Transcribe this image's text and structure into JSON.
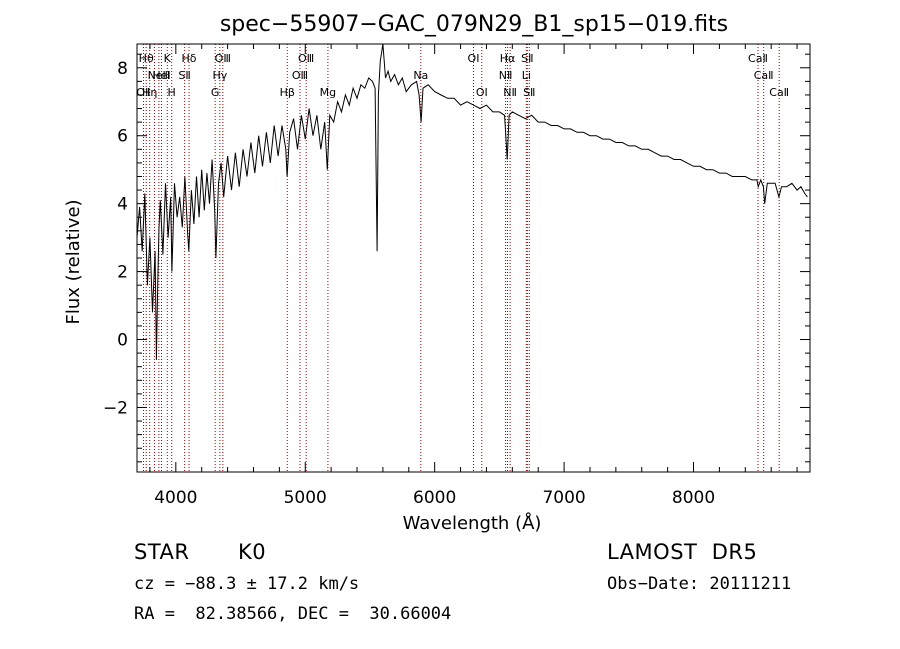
{
  "chart_data": {
    "type": "line",
    "title": "spec−55907−GAC_079N29_B1_sp15−019.fits",
    "xlabel": "Wavelength (Å)",
    "ylabel": "Flux (relative)",
    "xlim": [
      3700,
      8900
    ],
    "ylim": [
      -3.9,
      8.7
    ],
    "xticks": [
      4000,
      5000,
      6000,
      7000,
      8000
    ],
    "yticks": [
      -2,
      0,
      2,
      4,
      6,
      8
    ],
    "ytick_labels": [
      "−2",
      "0",
      "2",
      "4",
      "6",
      "8"
    ],
    "x_minor_step": 200,
    "y_minor_step": 0.4,
    "grid": false,
    "series": [
      {
        "color": "#000000",
        "points": [
          [
            3700,
            3.0
          ],
          [
            3720,
            3.9
          ],
          [
            3740,
            2.6
          ],
          [
            3760,
            4.3
          ],
          [
            3780,
            1.6
          ],
          [
            3800,
            3.0
          ],
          [
            3820,
            0.8
          ],
          [
            3840,
            2.6
          ],
          [
            3850,
            -0.6
          ],
          [
            3860,
            1.6
          ],
          [
            3870,
            3.3
          ],
          [
            3880,
            4.1
          ],
          [
            3900,
            2.5
          ],
          [
            3920,
            4.6
          ],
          [
            3940,
            3.0
          ],
          [
            3960,
            4.2
          ],
          [
            3970,
            2.0
          ],
          [
            3990,
            4.6
          ],
          [
            4010,
            3.6
          ],
          [
            4030,
            4.2
          ],
          [
            4050,
            3.3
          ],
          [
            4070,
            4.8
          ],
          [
            4090,
            3.2
          ],
          [
            4100,
            2.6
          ],
          [
            4120,
            4.4
          ],
          [
            4140,
            3.4
          ],
          [
            4160,
            4.8
          ],
          [
            4180,
            3.6
          ],
          [
            4200,
            5.0
          ],
          [
            4220,
            3.8
          ],
          [
            4240,
            4.9
          ],
          [
            4260,
            4.0
          ],
          [
            4280,
            5.3
          ],
          [
            4300,
            3.8
          ],
          [
            4310,
            2.4
          ],
          [
            4330,
            4.6
          ],
          [
            4350,
            5.2
          ],
          [
            4370,
            4.2
          ],
          [
            4400,
            5.4
          ],
          [
            4430,
            4.4
          ],
          [
            4460,
            5.5
          ],
          [
            4490,
            4.5
          ],
          [
            4520,
            5.6
          ],
          [
            4550,
            4.8
          ],
          [
            4580,
            5.8
          ],
          [
            4610,
            4.9
          ],
          [
            4640,
            6.0
          ],
          [
            4670,
            5.1
          ],
          [
            4700,
            6.1
          ],
          [
            4730,
            5.2
          ],
          [
            4760,
            6.3
          ],
          [
            4790,
            5.4
          ],
          [
            4820,
            6.3
          ],
          [
            4850,
            5.6
          ],
          [
            4860,
            4.8
          ],
          [
            4880,
            6.1
          ],
          [
            4910,
            6.5
          ],
          [
            4940,
            5.6
          ],
          [
            4970,
            6.6
          ],
          [
            5000,
            5.9
          ],
          [
            5030,
            6.8
          ],
          [
            5060,
            6.0
          ],
          [
            5090,
            6.6
          ],
          [
            5120,
            5.6
          ],
          [
            5150,
            6.4
          ],
          [
            5170,
            5.0
          ],
          [
            5190,
            6.6
          ],
          [
            5220,
            6.4
          ],
          [
            5250,
            7.0
          ],
          [
            5280,
            6.7
          ],
          [
            5310,
            7.2
          ],
          [
            5340,
            6.9
          ],
          [
            5370,
            7.4
          ],
          [
            5400,
            7.1
          ],
          [
            5430,
            7.5
          ],
          [
            5460,
            7.4
          ],
          [
            5490,
            7.7
          ],
          [
            5520,
            7.6
          ],
          [
            5540,
            7.4
          ],
          [
            5555,
            2.6
          ],
          [
            5565,
            7.2
          ],
          [
            5580,
            8.2
          ],
          [
            5600,
            8.7
          ],
          [
            5620,
            7.7
          ],
          [
            5640,
            7.9
          ],
          [
            5660,
            7.6
          ],
          [
            5690,
            7.8
          ],
          [
            5720,
            7.5
          ],
          [
            5750,
            7.7
          ],
          [
            5780,
            7.3
          ],
          [
            5820,
            7.5
          ],
          [
            5860,
            7.6
          ],
          [
            5880,
            7.2
          ],
          [
            5895,
            6.4
          ],
          [
            5910,
            7.4
          ],
          [
            5950,
            7.5
          ],
          [
            6000,
            7.3
          ],
          [
            6050,
            7.2
          ],
          [
            6100,
            7.1
          ],
          [
            6150,
            7.1
          ],
          [
            6200,
            6.9
          ],
          [
            6250,
            7.0
          ],
          [
            6300,
            6.9
          ],
          [
            6350,
            6.8
          ],
          [
            6400,
            6.9
          ],
          [
            6450,
            6.7
          ],
          [
            6500,
            6.7
          ],
          [
            6540,
            6.6
          ],
          [
            6560,
            5.3
          ],
          [
            6575,
            6.6
          ],
          [
            6600,
            6.7
          ],
          [
            6650,
            6.6
          ],
          [
            6700,
            6.5
          ],
          [
            6750,
            6.6
          ],
          [
            6800,
            6.4
          ],
          [
            6850,
            6.4
          ],
          [
            6900,
            6.3
          ],
          [
            6950,
            6.3
          ],
          [
            7000,
            6.2
          ],
          [
            7050,
            6.2
          ],
          [
            7100,
            6.1
          ],
          [
            7150,
            6.1
          ],
          [
            7200,
            6.0
          ],
          [
            7250,
            6.0
          ],
          [
            7300,
            5.9
          ],
          [
            7350,
            5.9
          ],
          [
            7400,
            5.8
          ],
          [
            7450,
            5.8
          ],
          [
            7500,
            5.7
          ],
          [
            7550,
            5.7
          ],
          [
            7600,
            5.6
          ],
          [
            7650,
            5.6
          ],
          [
            7700,
            5.5
          ],
          [
            7750,
            5.4
          ],
          [
            7800,
            5.4
          ],
          [
            7850,
            5.3
          ],
          [
            7900,
            5.3
          ],
          [
            7950,
            5.2
          ],
          [
            8000,
            5.1
          ],
          [
            8050,
            5.1
          ],
          [
            8100,
            5.0
          ],
          [
            8150,
            5.0
          ],
          [
            8200,
            4.9
          ],
          [
            8250,
            4.9
          ],
          [
            8300,
            4.8
          ],
          [
            8350,
            4.8
          ],
          [
            8400,
            4.8
          ],
          [
            8450,
            4.7
          ],
          [
            8490,
            4.7
          ],
          [
            8500,
            4.5
          ],
          [
            8520,
            4.7
          ],
          [
            8540,
            4.5
          ],
          [
            8550,
            4.0
          ],
          [
            8570,
            4.6
          ],
          [
            8600,
            4.6
          ],
          [
            8630,
            4.6
          ],
          [
            8660,
            4.2
          ],
          [
            8680,
            4.5
          ],
          [
            8720,
            4.5
          ],
          [
            8760,
            4.6
          ],
          [
            8800,
            4.4
          ],
          [
            8830,
            4.5
          ],
          [
            8860,
            4.3
          ],
          [
            8880,
            4.2
          ]
        ]
      }
    ],
    "line_color": "#990000",
    "lines": [
      {
        "x": 3750,
        "label": "OⅡ",
        "row": 3
      },
      {
        "x": 3771,
        "label": "Hθ",
        "row": 1
      },
      {
        "x": 3798,
        "label": "Hη",
        "row": 3
      },
      {
        "x": 3835,
        "label": "",
        "row": 0
      },
      {
        "x": 3869,
        "label": "NeⅢ",
        "row": 2
      },
      {
        "x": 3889,
        "label": "HeⅠ",
        "row": 2
      },
      {
        "x": 3934,
        "label": "K",
        "row": 1
      },
      {
        "x": 3968,
        "label": "H",
        "row": 3
      },
      {
        "x": 4068,
        "label": "SⅡ",
        "row": 2
      },
      {
        "x": 4102,
        "label": "Hδ",
        "row": 1
      },
      {
        "x": 4304,
        "label": "G",
        "row": 3
      },
      {
        "x": 4340,
        "label": "Hγ",
        "row": 2
      },
      {
        "x": 4363,
        "label": "OⅢ",
        "row": 1
      },
      {
        "x": 4861,
        "label": "Hβ",
        "row": 3
      },
      {
        "x": 4959,
        "label": "OⅢ",
        "row": 2
      },
      {
        "x": 5007,
        "label": "OⅢ",
        "row": 1
      },
      {
        "x": 5175,
        "label": "Mg",
        "row": 3
      },
      {
        "x": 5893,
        "label": "Na",
        "row": 2
      },
      {
        "x": 6300,
        "label": "OⅠ",
        "row": 1
      },
      {
        "x": 6364,
        "label": "OⅠ",
        "row": 3
      },
      {
        "x": 6548,
        "label": "NⅡ",
        "row": 2
      },
      {
        "x": 6563,
        "label": "Hα",
        "row": 1
      },
      {
        "x": 6583,
        "label": "NⅡ",
        "row": 3
      },
      {
        "x": 6708,
        "label": "Li",
        "row": 2
      },
      {
        "x": 6716,
        "label": "SⅡ",
        "row": 1
      },
      {
        "x": 6731,
        "label": "SⅡ",
        "row": 3
      },
      {
        "x": 8498,
        "label": "CaⅡ",
        "row": 1
      },
      {
        "x": 8542,
        "label": "CaⅡ",
        "row": 2
      },
      {
        "x": 8662,
        "label": "CaⅡ",
        "row": 3
      }
    ]
  },
  "info": {
    "object_type": "STAR",
    "subclass": "K0",
    "survey": "LAMOST  DR5",
    "cz": "cz = −88.3 ± 17.2 km/s",
    "obs_date": "Obs−Date: 20111211",
    "coords": "RA =  82.38566, DEC =  30.66004"
  }
}
